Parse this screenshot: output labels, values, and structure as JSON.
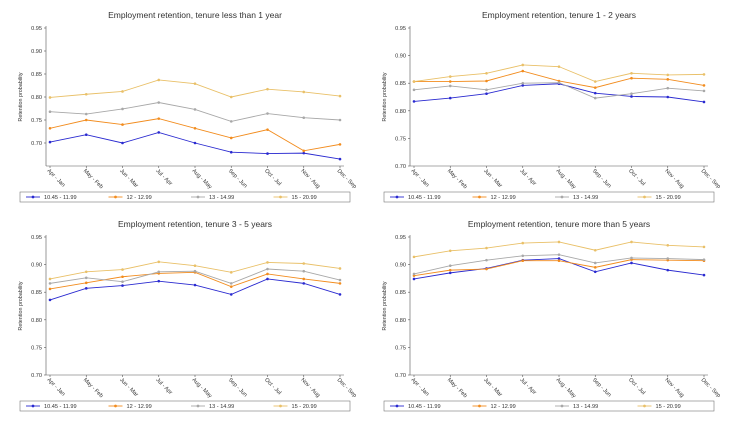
{
  "colors": {
    "s1": "#2a2ad0",
    "s2": "#f28c1e",
    "s3": "#a8a8a8",
    "s4": "#e9c068"
  },
  "chart_data": [
    {
      "type": "line",
      "title": "Employment retention, tenure less than 1 year",
      "ylabel": "Retention probability",
      "ylim": [
        0.65,
        0.95
      ],
      "yticks": [
        "0.95",
        "0.90",
        "0.85",
        "0.80",
        "0.75",
        "0.70"
      ],
      "categories": [
        "Apr - Jan",
        "May - Feb",
        "Jun - Mar",
        "Jul - Apr",
        "Aug - May",
        "Sep - Jun",
        "Oct - Jul",
        "Nov - Aug",
        "Dec - Sep"
      ],
      "series": [
        {
          "name": "10.45 - 11.99",
          "color": "#2a2ad0",
          "values": [
            0.702,
            0.718,
            0.7,
            0.723,
            0.7,
            0.68,
            0.677,
            0.678,
            0.665
          ]
        },
        {
          "name": "12 - 12.99",
          "color": "#f28c1e",
          "values": [
            0.732,
            0.75,
            0.74,
            0.753,
            0.732,
            0.711,
            0.729,
            0.683,
            0.697
          ]
        },
        {
          "name": "13 - 14.99",
          "color": "#a8a8a8",
          "values": [
            0.768,
            0.763,
            0.774,
            0.788,
            0.773,
            0.747,
            0.764,
            0.755,
            0.75
          ]
        },
        {
          "name": "15 - 20.99",
          "color": "#e9c068",
          "values": [
            0.799,
            0.806,
            0.812,
            0.837,
            0.829,
            0.8,
            0.817,
            0.811,
            0.802
          ]
        }
      ]
    },
    {
      "type": "line",
      "title": "Employment retention, tenure 1 - 2 years",
      "ylabel": "Retention probability",
      "ylim": [
        0.7,
        0.95
      ],
      "yticks": [
        "0.95",
        "0.90",
        "0.85",
        "0.80",
        "0.75",
        "0.70"
      ],
      "categories": [
        "Apr - Jan",
        "May - Feb",
        "Jun - Mar",
        "Jul - Apr",
        "Aug - May",
        "Sep - Jun",
        "Oct - Jul",
        "Nov - Aug",
        "Dec - Sep"
      ],
      "series": [
        {
          "name": "10.45 - 11.99",
          "color": "#2a2ad0",
          "values": [
            0.817,
            0.823,
            0.831,
            0.846,
            0.849,
            0.832,
            0.826,
            0.825,
            0.816
          ]
        },
        {
          "name": "12 - 12.99",
          "color": "#f28c1e",
          "values": [
            0.853,
            0.853,
            0.854,
            0.872,
            0.854,
            0.842,
            0.859,
            0.857,
            0.846
          ]
        },
        {
          "name": "13 - 14.99",
          "color": "#a8a8a8",
          "values": [
            0.838,
            0.845,
            0.838,
            0.85,
            0.851,
            0.823,
            0.831,
            0.841,
            0.836
          ]
        },
        {
          "name": "15 - 20.99",
          "color": "#e9c068",
          "values": [
            0.853,
            0.862,
            0.868,
            0.883,
            0.88,
            0.853,
            0.868,
            0.865,
            0.866
          ]
        }
      ]
    },
    {
      "type": "line",
      "title": "Employment retention, tenure 3 - 5 years",
      "ylabel": "Retention probability",
      "ylim": [
        0.7,
        0.95
      ],
      "yticks": [
        "0.95",
        "0.90",
        "0.85",
        "0.80",
        "0.75",
        "0.70"
      ],
      "categories": [
        "Apr - Jan",
        "May - Feb",
        "Jun - Mar",
        "Jul - Apr",
        "Aug - May",
        "Sep - Jun",
        "Oct - Jul",
        "Nov - Aug",
        "Dec - Sep"
      ],
      "series": [
        {
          "name": "10.45 - 11.99",
          "color": "#2a2ad0",
          "values": [
            0.836,
            0.857,
            0.862,
            0.87,
            0.863,
            0.846,
            0.874,
            0.866,
            0.846
          ]
        },
        {
          "name": "12 - 12.99",
          "color": "#f28c1e",
          "values": [
            0.856,
            0.867,
            0.878,
            0.884,
            0.886,
            0.86,
            0.883,
            0.874,
            0.866
          ]
        },
        {
          "name": "13 - 14.99",
          "color": "#a8a8a8",
          "values": [
            0.866,
            0.876,
            0.869,
            0.887,
            0.888,
            0.866,
            0.892,
            0.888,
            0.872
          ]
        },
        {
          "name": "15 - 20.99",
          "color": "#e9c068",
          "values": [
            0.874,
            0.887,
            0.891,
            0.905,
            0.898,
            0.886,
            0.904,
            0.902,
            0.893
          ]
        }
      ]
    },
    {
      "type": "line",
      "title": "Employment retention, tenure more than 5 years",
      "ylabel": "Retention probability",
      "ylim": [
        0.7,
        0.95
      ],
      "yticks": [
        "0.95",
        "0.90",
        "0.85",
        "0.80",
        "0.75",
        "0.70"
      ],
      "categories": [
        "Apr - Jan",
        "May - Feb",
        "Jun - Mar",
        "Jul - Apr",
        "Aug - May",
        "Sep - Jun",
        "Oct - Jul",
        "Nov - Aug",
        "Dec - Sep"
      ],
      "series": [
        {
          "name": "10.45 - 11.99",
          "color": "#2a2ad0",
          "values": [
            0.874,
            0.885,
            0.893,
            0.908,
            0.911,
            0.887,
            0.903,
            0.89,
            0.881
          ]
        },
        {
          "name": "12 - 12.99",
          "color": "#f28c1e",
          "values": [
            0.88,
            0.89,
            0.892,
            0.907,
            0.907,
            0.895,
            0.909,
            0.908,
            0.907
          ]
        },
        {
          "name": "13 - 14.99",
          "color": "#a8a8a8",
          "values": [
            0.883,
            0.898,
            0.908,
            0.916,
            0.918,
            0.903,
            0.912,
            0.911,
            0.909
          ]
        },
        {
          "name": "15 - 20.99",
          "color": "#e9c068",
          "values": [
            0.914,
            0.925,
            0.93,
            0.939,
            0.941,
            0.926,
            0.941,
            0.935,
            0.932
          ]
        }
      ]
    }
  ]
}
